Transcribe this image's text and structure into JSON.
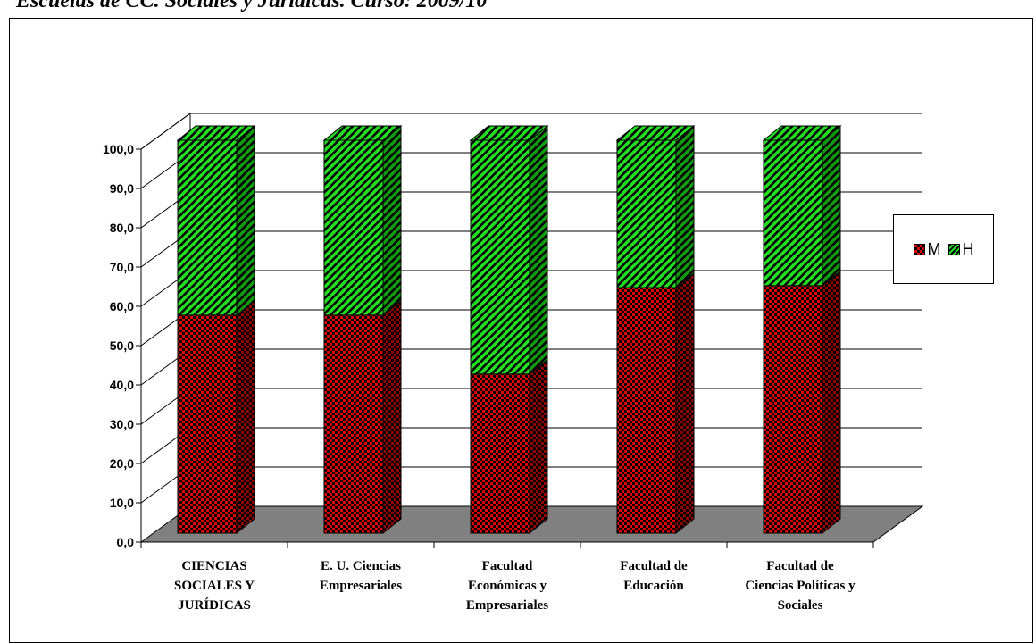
{
  "page_title": "Escuelas de CC. Sociales y Jurídicas. Curso: 2009/10",
  "colors": {
    "M": "#e00000",
    "H": "#22dd22",
    "floor": "#808080",
    "pattern": "#000000"
  },
  "legend": {
    "m_label": "M",
    "h_label": "H"
  },
  "chart_data": {
    "type": "bar",
    "stacked": true,
    "three_d": true,
    "categories": [
      "CIENCIAS SOCIALES Y JURÍDICAS",
      "E. U. Ciencias Empresariales",
      "Facultad Económicas y Empresariales",
      "Facultad de Educación",
      "Facultad de Ciencias Políticas y Sociales"
    ],
    "category_lines": [
      [
        "CIENCIAS",
        "SOCIALES Y",
        "JURÍDICAS"
      ],
      [
        "E. U. Ciencias",
        "Empresariales"
      ],
      [
        "Facultad",
        "Económicas y",
        "Empresariales"
      ],
      [
        "Facultad de",
        "Educación"
      ],
      [
        "Facultad de",
        "Ciencias Políticas y",
        "Sociales"
      ]
    ],
    "series": [
      {
        "name": "M",
        "values": [
          55.5,
          55.5,
          40.5,
          62.5,
          63.0
        ]
      },
      {
        "name": "H",
        "values": [
          44.5,
          44.5,
          59.5,
          37.5,
          37.0
        ]
      }
    ],
    "ylim": [
      0,
      100
    ],
    "yticks": [
      "0,0",
      "10,0",
      "20,0",
      "30,0",
      "40,0",
      "50,0",
      "60,0",
      "70,0",
      "80,0",
      "90,0",
      "100,0"
    ],
    "grid": true,
    "legend_position": "right"
  }
}
